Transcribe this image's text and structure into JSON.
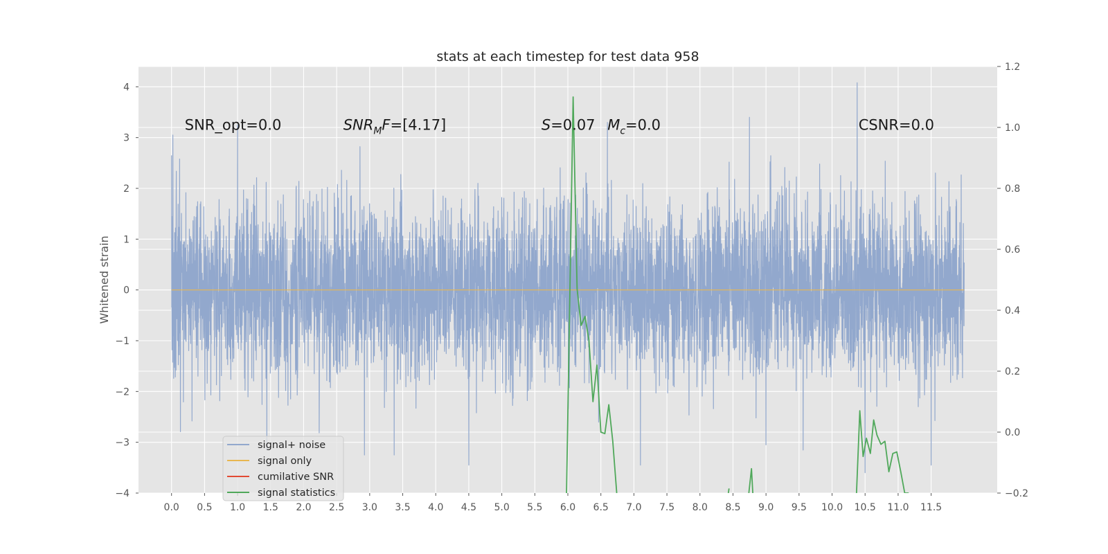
{
  "chart_data": {
    "type": "line",
    "title": "stats at each timestep for test data 958",
    "ylabel": "Whitened strain",
    "xlim": [
      -0.5,
      12.5
    ],
    "ylim": [
      -4,
      4.4
    ],
    "ylim_right": [
      -0.2,
      1.2
    ],
    "xticks": [
      0.0,
      0.5,
      1.0,
      1.5,
      2.0,
      2.5,
      3.0,
      3.5,
      4.0,
      4.5,
      5.0,
      5.5,
      6.0,
      6.5,
      7.0,
      7.5,
      8.0,
      8.5,
      9.0,
      9.5,
      10.0,
      10.5,
      11.0,
      11.5
    ],
    "xtick_labels": [
      "0.0",
      "0.5",
      "1.0",
      "1.5",
      "2.0",
      "2.5",
      "3.0",
      "3.5",
      "4.0",
      "4.5",
      "5.0",
      "5.5",
      "6.0",
      "6.5",
      "7.0",
      "7.5",
      "8.0",
      "8.5",
      "9.0",
      "9.5",
      "10.0",
      "10.5",
      "11.0",
      "11.5"
    ],
    "yticks": [
      4,
      3,
      2,
      1,
      0,
      -1,
      -2,
      -3,
      -4
    ],
    "ytick_labels": [
      "4",
      "3",
      "2",
      "1",
      "0",
      "−1",
      "−2",
      "−3",
      "−4"
    ],
    "yticks_right": [
      1.2,
      1.0,
      0.8,
      0.6,
      0.4,
      0.2,
      0.0,
      -0.2
    ],
    "ytick_labels_right": [
      "1.2",
      "1.0",
      "0.8",
      "0.6",
      "0.4",
      "0.2",
      "0.0",
      "−0.2"
    ],
    "grid": true,
    "legend_position": "lower-left",
    "annotations": [
      {
        "x": 0.2,
        "y": 3.25,
        "html": "SNR_opt=0.0"
      },
      {
        "x": 2.6,
        "y": 3.25,
        "html": "<tspan font-style=\"italic\">SNR</tspan><tspan font-style=\"italic\" font-size=\"14\" dy=\"6\">M</tspan><tspan font-style=\"italic\" dy=\"-6\">F</tspan>=[4.17]"
      },
      {
        "x": 5.6,
        "y": 3.25,
        "html": "<tspan font-style=\"italic\">S</tspan>=0.07"
      },
      {
        "x": 6.6,
        "y": 3.25,
        "html": "<tspan font-style=\"italic\">M</tspan><tspan font-style=\"italic\" font-size=\"14\" dy=\"6\">c</tspan><tspan dy=\"-6\">=0.0</tspan>"
      },
      {
        "x": 10.4,
        "y": 3.25,
        "html": "CSNR=0.0"
      }
    ],
    "series": [
      {
        "name": "signal+ noise",
        "color": "#92a8cd",
        "axis": "left",
        "description": "whitened noise samples",
        "x_range": [
          0.0,
          12.0
        ],
        "approx_std": 0.85,
        "approx_range": [
          -3.5,
          4.1
        ],
        "peaks": [
          {
            "x": 0.02,
            "y": 3.05
          },
          {
            "x": 10.38,
            "y": 4.08
          },
          {
            "x": 8.75,
            "y": 3.4
          },
          {
            "x": 2.92,
            "y": -3.25
          },
          {
            "x": 3.37,
            "y": -3.25
          },
          {
            "x": 4.5,
            "y": -3.45
          },
          {
            "x": 6.6,
            "y": 3.3
          },
          {
            "x": 9.0,
            "y": -3.05
          },
          {
            "x": 11.5,
            "y": -3.45
          },
          {
            "x": 10.5,
            "y": -3.6
          },
          {
            "x": 7.1,
            "y": -3.45
          },
          {
            "x": 1.0,
            "y": 3.25
          }
        ]
      },
      {
        "name": "signal only",
        "color": "#e8b64f",
        "axis": "left",
        "x": [
          0.0,
          12.0
        ],
        "y": [
          0.0,
          0.0
        ]
      },
      {
        "name": "cumilative SNR",
        "color": "#e24a33",
        "axis": "right",
        "x": [],
        "y": []
      },
      {
        "name": "signal statistics",
        "color": "#4fa85a",
        "axis": "right",
        "segments": [
          {
            "x": [
              5.98,
              6.03,
              6.08,
              6.14,
              6.2,
              6.26,
              6.32,
              6.38,
              6.44,
              6.5,
              6.56,
              6.62,
              6.68,
              6.74
            ],
            "y": [
              -0.2,
              0.45,
              1.1,
              0.47,
              0.35,
              0.38,
              0.3,
              0.1,
              0.22,
              0.0,
              -0.005,
              0.09,
              -0.03,
              -0.2
            ]
          },
          {
            "x": [
              8.43,
              8.44
            ],
            "y": [
              -0.2,
              -0.185
            ]
          },
          {
            "x": [
              8.74,
              8.78,
              8.8
            ],
            "y": [
              -0.2,
              -0.12,
              -0.2
            ]
          },
          {
            "x": [
              10.37,
              10.42,
              10.47,
              10.52,
              10.58,
              10.63,
              10.68,
              10.74,
              10.8,
              10.86,
              10.92,
              10.98,
              11.04,
              11.1,
              11.16
            ],
            "y": [
              -0.2,
              0.07,
              -0.08,
              -0.02,
              -0.07,
              0.04,
              -0.01,
              -0.04,
              -0.03,
              -0.13,
              -0.07,
              -0.065,
              -0.13,
              -0.2,
              -0.2
            ]
          }
        ]
      }
    ]
  }
}
